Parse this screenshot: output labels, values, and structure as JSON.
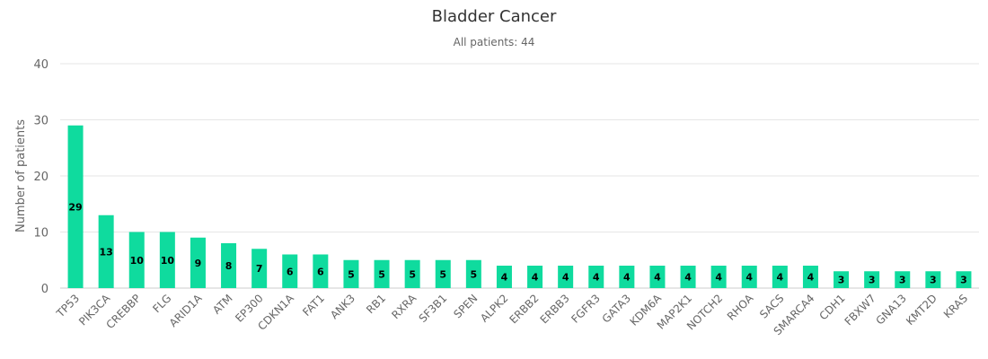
{
  "chart_data": {
    "type": "bar",
    "title": "Bladder Cancer",
    "subtitle": "All patients: 44",
    "xlabel": "",
    "ylabel": "Number of patients",
    "ylim": [
      0,
      40
    ],
    "yticks": [
      "0",
      "10",
      "20",
      "30",
      "40"
    ],
    "grid": true,
    "bar_color": "#0fdb9e",
    "categories": [
      "TP53",
      "PIK3CA",
      "CREBBP",
      "FLG",
      "ARID1A",
      "ATM",
      "EP300",
      "CDKN1A",
      "FAT1",
      "ANK3",
      "RB1",
      "RXRA",
      "SF3B1",
      "SPEN",
      "ALPK2",
      "ERBB2",
      "ERBB3",
      "FGFR3",
      "GATA3",
      "KDM6A",
      "MAP2K1",
      "NOTCH2",
      "RHOA",
      "SACS",
      "SMARCA4",
      "CDH1",
      "FBXW7",
      "GNA13",
      "KMT2D",
      "KRAS"
    ],
    "values": [
      29,
      13,
      10,
      10,
      9,
      8,
      7,
      6,
      6,
      5,
      5,
      5,
      5,
      5,
      4,
      4,
      4,
      4,
      4,
      4,
      4,
      4,
      4,
      4,
      4,
      3,
      3,
      3,
      3,
      3
    ]
  }
}
